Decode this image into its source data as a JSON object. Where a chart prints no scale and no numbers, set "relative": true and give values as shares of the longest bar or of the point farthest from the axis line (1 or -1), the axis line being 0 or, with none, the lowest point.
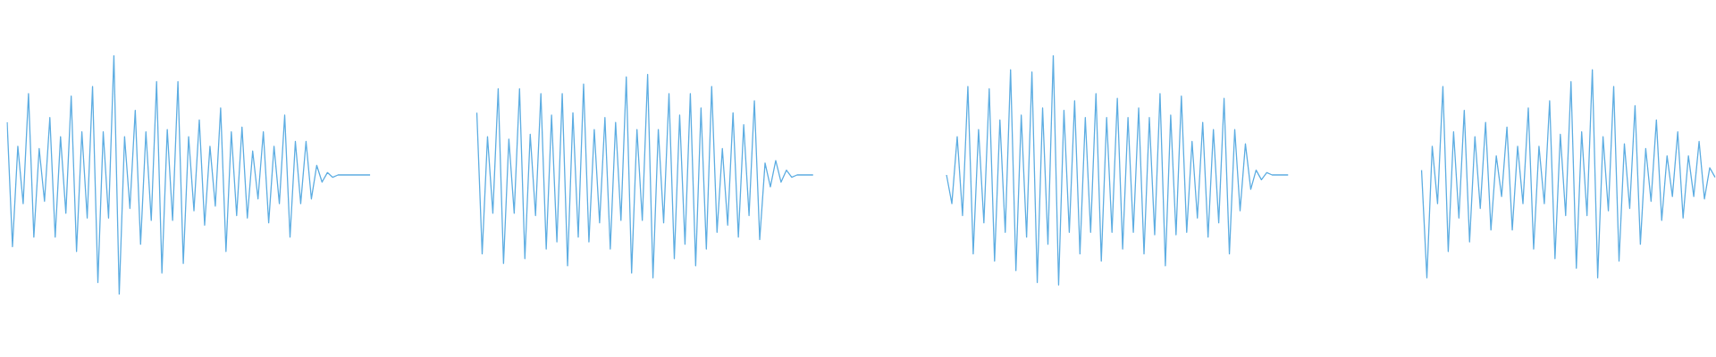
{
  "chart_data": {
    "type": "line",
    "relative": true,
    "marker": "none",
    "tick_labels": false,
    "categories": [
      null,
      null,
      null,
      null,
      null,
      null,
      null,
      null,
      null,
      null,
      null,
      null,
      null,
      null,
      null,
      null,
      null,
      null,
      null,
      null,
      null,
      null,
      null,
      null,
      null,
      null,
      null,
      null,
      null,
      null,
      null,
      null,
      null,
      null,
      null,
      null,
      null,
      null,
      null,
      null,
      null,
      null,
      null,
      null,
      null,
      null,
      null,
      null,
      null,
      null,
      null,
      null,
      null,
      null,
      null,
      null,
      null,
      null,
      null,
      null,
      null,
      null,
      null,
      null,
      null,
      null,
      null,
      null,
      null,
      null,
      null,
      null,
      null,
      null,
      null,
      null,
      null,
      null,
      null,
      null,
      null,
      null,
      null,
      null,
      null,
      null,
      null,
      null,
      null,
      null,
      null,
      null,
      null,
      null,
      null,
      null,
      null,
      null,
      null,
      null,
      null,
      null,
      null,
      null,
      null,
      null,
      null,
      null,
      null,
      null,
      null,
      null,
      null,
      null,
      null,
      null,
      null,
      null,
      null,
      null,
      null,
      null,
      null,
      null,
      null,
      null,
      null,
      null,
      null,
      null,
      null,
      null,
      null,
      null,
      null,
      null,
      null,
      null,
      null,
      null,
      null,
      null,
      null,
      null,
      null,
      null,
      null,
      null,
      null,
      null,
      null,
      null,
      null,
      null,
      null,
      null,
      null,
      null,
      null,
      null,
      null,
      null,
      null,
      null,
      null,
      null,
      null,
      null,
      null,
      null,
      null,
      null,
      null,
      null,
      null,
      null,
      null,
      null,
      null,
      null,
      null,
      null,
      null,
      null,
      null,
      null,
      null,
      null,
      null,
      null,
      null,
      null,
      null,
      null,
      null,
      null,
      null,
      null,
      null,
      null,
      null,
      null,
      null,
      null,
      null,
      null,
      null,
      null,
      null,
      null,
      null,
      null,
      null,
      null,
      null,
      null,
      null,
      null,
      null,
      null,
      null,
      null,
      null,
      null,
      null,
      null,
      null,
      null,
      null,
      null,
      null,
      null,
      null,
      null,
      null,
      null,
      null,
      null,
      null,
      null,
      null,
      null,
      null,
      null,
      null,
      null,
      null,
      null,
      null,
      null,
      null,
      null,
      null,
      null,
      null,
      null,
      null,
      null,
      null,
      null,
      null,
      null,
      null,
      null,
      null,
      null,
      null,
      null,
      null,
      null,
      null,
      null,
      null,
      null,
      null,
      null,
      null,
      null,
      null,
      null,
      null,
      null,
      null,
      null,
      null,
      null,
      null,
      null,
      null,
      null,
      null,
      null,
      null,
      null,
      null,
      null,
      null,
      null,
      null,
      null,
      null,
      null,
      null,
      null,
      null,
      null,
      null,
      null,
      null,
      null,
      null,
      null,
      null,
      null,
      null,
      null,
      null,
      null,
      null,
      null,
      null
    ],
    "series": [
      {
        "color": "#5dade2",
        "values": [
          0.72,
          0.2,
          0.62,
          0.38,
          0.84,
          0.24,
          0.61,
          0.39,
          0.74,
          0.24,
          0.66,
          0.34,
          0.83,
          0.18,
          0.68,
          0.32,
          0.87,
          0.05,
          0.68,
          0.32,
          1.0,
          0.0,
          0.66,
          0.36,
          0.77,
          0.21,
          0.68,
          0.31,
          0.89,
          0.09,
          0.69,
          0.31,
          0.89,
          0.13,
          0.66,
          0.35,
          0.73,
          0.29,
          0.62,
          0.37,
          0.78,
          0.18,
          0.68,
          0.33,
          0.7,
          0.32,
          0.6,
          0.4,
          0.68,
          0.3,
          0.62,
          0.38,
          0.75,
          0.24,
          0.64,
          0.38,
          0.64,
          0.4,
          0.54,
          0.47,
          0.51,
          0.49,
          0.5,
          0.5,
          0.5,
          0.5,
          0.5,
          0.5,
          0.5,
          null,
          null,
          null,
          null,
          null,
          null,
          null,
          null,
          null,
          null,
          null,
          null,
          null,
          null,
          null,
          null,
          null,
          null,
          null,
          null,
          null,
          null,
          null,
          null,
          null,
          null,
          null,
          null,
          null,
          null,
          null,
          null,
          null,
          null,
          null,
          null,
          null,
          null,
          null,
          null,
          null,
          null,
          null,
          null,
          null,
          null,
          null,
          null,
          null,
          null,
          null,
          null,
          null,
          null,
          null,
          null,
          null,
          null,
          null,
          null,
          null,
          null,
          null,
          null,
          null,
          null,
          null,
          null,
          null,
          null,
          null,
          null,
          null,
          null,
          null,
          null,
          null,
          null,
          null,
          null,
          null,
          null,
          null,
          null,
          null,
          null,
          null,
          null,
          null,
          null,
          null,
          null,
          null,
          null,
          null,
          null,
          null,
          null,
          null,
          null,
          null,
          null,
          null,
          null,
          null,
          null,
          null,
          null,
          null,
          null,
          null,
          null,
          null,
          null,
          null,
          null,
          null,
          null,
          null,
          null,
          null,
          null,
          null,
          null,
          null,
          null,
          null,
          null,
          null,
          null,
          null,
          null,
          null,
          null,
          null,
          null,
          null,
          null,
          null,
          null,
          null,
          null,
          null,
          null,
          null,
          null,
          null,
          null,
          null,
          null,
          null,
          null,
          null,
          null,
          null,
          null,
          null,
          null,
          null,
          null,
          null,
          null,
          null,
          null,
          null,
          null,
          null,
          null,
          null,
          null,
          null,
          null,
          null,
          null,
          null,
          null,
          null,
          null,
          null,
          null,
          null,
          null,
          null,
          null,
          null,
          null,
          null,
          null,
          null,
          null,
          null,
          null,
          null,
          null,
          null,
          null,
          null,
          null,
          null,
          null,
          null,
          null,
          null,
          null,
          null,
          null,
          null,
          null,
          null,
          null,
          null,
          null,
          null,
          null,
          null,
          null,
          null,
          null,
          null,
          null,
          null,
          null,
          null,
          null,
          null,
          null,
          null,
          null,
          null,
          null,
          null,
          null,
          null,
          null,
          null,
          null,
          null,
          null,
          null,
          null,
          null,
          null,
          null,
          null,
          null,
          null,
          null,
          null,
          null,
          null,
          null,
          null
        ]
      },
      {
        "color": "#5dade2",
        "values": [
          null,
          null,
          null,
          null,
          null,
          null,
          null,
          null,
          null,
          null,
          null,
          null,
          null,
          null,
          null,
          null,
          null,
          null,
          null,
          null,
          null,
          null,
          null,
          null,
          null,
          null,
          null,
          null,
          null,
          null,
          null,
          null,
          null,
          null,
          null,
          null,
          null,
          null,
          null,
          null,
          null,
          null,
          null,
          null,
          null,
          null,
          null,
          null,
          null,
          null,
          null,
          null,
          null,
          null,
          null,
          null,
          null,
          null,
          null,
          null,
          null,
          null,
          null,
          null,
          null,
          null,
          null,
          null,
          null,
          null,
          null,
          null,
          null,
          null,
          null,
          null,
          null,
          null,
          null,
          null,
          null,
          null,
          null,
          null,
          null,
          null,
          null,
          null,
          0.76,
          0.17,
          0.66,
          0.34,
          0.86,
          0.13,
          0.65,
          0.34,
          0.86,
          0.15,
          0.67,
          0.33,
          0.84,
          0.19,
          0.75,
          0.22,
          0.84,
          0.12,
          0.76,
          0.24,
          0.88,
          0.22,
          0.69,
          0.3,
          0.74,
          0.19,
          0.72,
          0.31,
          0.91,
          0.09,
          0.69,
          0.31,
          0.92,
          0.07,
          0.69,
          0.3,
          0.84,
          0.15,
          0.75,
          0.21,
          0.84,
          0.12,
          0.78,
          0.19,
          0.87,
          0.26,
          0.61,
          0.29,
          0.76,
          0.24,
          0.71,
          0.33,
          0.81,
          0.23,
          0.55,
          0.45,
          0.56,
          0.47,
          0.52,
          0.49,
          0.5,
          0.5,
          0.5,
          0.5,
          null,
          null,
          null,
          null,
          null,
          null,
          null,
          null,
          null,
          null,
          null,
          null,
          null,
          null,
          null,
          null,
          null,
          null,
          null,
          null,
          null,
          null,
          null,
          null,
          null,
          null,
          null,
          null,
          null,
          null,
          null,
          null,
          null,
          null,
          null,
          null,
          null,
          null,
          null,
          null,
          null,
          null,
          null,
          null,
          null,
          null,
          null,
          null,
          null,
          null,
          null,
          null,
          null,
          null,
          null,
          null,
          null,
          null,
          null,
          null,
          null,
          null,
          null,
          null,
          null,
          null,
          null,
          null,
          null,
          null,
          null,
          null,
          null,
          null,
          null,
          null,
          null,
          null,
          null,
          null,
          null,
          null,
          null,
          null,
          null,
          null,
          null,
          null,
          null,
          null,
          null,
          null,
          null,
          null,
          null,
          null,
          null,
          null,
          null,
          null,
          null,
          null,
          null,
          null,
          null,
          null,
          null,
          null,
          null,
          null,
          null,
          null,
          null,
          null,
          null,
          null,
          null,
          null,
          null,
          null,
          null,
          null,
          null,
          null,
          null,
          null,
          null,
          null,
          null,
          null,
          null,
          null,
          null,
          null,
          null,
          null,
          null,
          null,
          null,
          null,
          null,
          null,
          null,
          null,
          null,
          null,
          null,
          null,
          null,
          null,
          null,
          null,
          null,
          null,
          null,
          null,
          null,
          null,
          null,
          null,
          null,
          null,
          null,
          null,
          null,
          null,
          null,
          null,
          null
        ]
      },
      {
        "color": "#5dade2",
        "values": [
          null,
          null,
          null,
          null,
          null,
          null,
          null,
          null,
          null,
          null,
          null,
          null,
          null,
          null,
          null,
          null,
          null,
          null,
          null,
          null,
          null,
          null,
          null,
          null,
          null,
          null,
          null,
          null,
          null,
          null,
          null,
          null,
          null,
          null,
          null,
          null,
          null,
          null,
          null,
          null,
          null,
          null,
          null,
          null,
          null,
          null,
          null,
          null,
          null,
          null,
          null,
          null,
          null,
          null,
          null,
          null,
          null,
          null,
          null,
          null,
          null,
          null,
          null,
          null,
          null,
          null,
          null,
          null,
          null,
          null,
          null,
          null,
          null,
          null,
          null,
          null,
          null,
          null,
          null,
          null,
          null,
          null,
          null,
          null,
          null,
          null,
          null,
          null,
          null,
          null,
          null,
          null,
          null,
          null,
          null,
          null,
          null,
          null,
          null,
          null,
          null,
          null,
          null,
          null,
          null,
          null,
          null,
          null,
          null,
          null,
          null,
          null,
          null,
          null,
          null,
          null,
          null,
          null,
          null,
          null,
          null,
          null,
          null,
          null,
          null,
          null,
          null,
          null,
          null,
          null,
          null,
          null,
          null,
          null,
          null,
          null,
          null,
          null,
          null,
          null,
          null,
          null,
          null,
          null,
          null,
          null,
          null,
          null,
          null,
          null,
          null,
          null,
          null,
          null,
          null,
          null,
          null,
          null,
          null,
          null,
          null,
          null,
          null,
          null,
          null,
          null,
          null,
          null,
          null,
          null,
          null,
          null,
          null,
          null,
          null,
          null,
          0.5,
          0.38,
          0.66,
          0.33,
          0.87,
          0.17,
          0.69,
          0.3,
          0.86,
          0.14,
          0.73,
          0.26,
          0.94,
          0.1,
          0.75,
          0.24,
          0.93,
          0.05,
          0.78,
          0.21,
          1.0,
          0.04,
          0.77,
          0.26,
          0.81,
          0.17,
          0.74,
          0.26,
          0.84,
          0.14,
          0.74,
          0.26,
          0.82,
          0.19,
          0.74,
          0.26,
          0.78,
          0.17,
          0.74,
          0.25,
          0.84,
          0.12,
          0.75,
          0.25,
          0.83,
          0.26,
          0.64,
          0.32,
          0.72,
          0.24,
          0.69,
          0.3,
          0.82,
          0.17,
          0.69,
          0.35,
          0.63,
          0.44,
          0.52,
          0.48,
          0.51,
          0.5,
          0.5,
          0.5,
          0.5,
          null,
          null,
          null,
          null,
          null,
          null,
          null,
          null,
          null,
          null,
          null,
          null,
          null,
          null,
          null,
          null,
          null,
          null,
          null,
          null,
          null,
          null,
          null,
          null,
          null,
          null,
          null,
          null,
          null,
          null,
          null,
          null,
          null,
          null,
          null,
          null,
          null,
          null,
          null,
          null,
          null,
          null,
          null,
          null,
          null,
          null,
          null,
          null,
          null,
          null,
          null,
          null,
          null,
          null,
          null,
          null,
          null,
          null,
          null,
          null,
          null,
          null,
          null,
          null,
          null,
          null,
          null,
          null,
          null,
          null,
          null,
          null,
          null,
          null,
          null,
          null,
          null,
          null,
          null,
          null
        ]
      },
      {
        "color": "#5dade2",
        "values": [
          null,
          null,
          null,
          null,
          null,
          null,
          null,
          null,
          null,
          null,
          null,
          null,
          null,
          null,
          null,
          null,
          null,
          null,
          null,
          null,
          null,
          null,
          null,
          null,
          null,
          null,
          null,
          null,
          null,
          null,
          null,
          null,
          null,
          null,
          null,
          null,
          null,
          null,
          null,
          null,
          null,
          null,
          null,
          null,
          null,
          null,
          null,
          null,
          null,
          null,
          null,
          null,
          null,
          null,
          null,
          null,
          null,
          null,
          null,
          null,
          null,
          null,
          null,
          null,
          null,
          null,
          null,
          null,
          null,
          null,
          null,
          null,
          null,
          null,
          null,
          null,
          null,
          null,
          null,
          null,
          null,
          null,
          null,
          null,
          null,
          null,
          null,
          null,
          null,
          null,
          null,
          null,
          null,
          null,
          null,
          null,
          null,
          null,
          null,
          null,
          null,
          null,
          null,
          null,
          null,
          null,
          null,
          null,
          null,
          null,
          null,
          null,
          null,
          null,
          null,
          null,
          null,
          null,
          null,
          null,
          null,
          null,
          null,
          null,
          null,
          null,
          null,
          null,
          null,
          null,
          null,
          null,
          null,
          null,
          null,
          null,
          null,
          null,
          null,
          null,
          null,
          null,
          null,
          null,
          null,
          null,
          null,
          null,
          null,
          null,
          null,
          null,
          null,
          null,
          null,
          null,
          null,
          null,
          null,
          null,
          null,
          null,
          null,
          null,
          null,
          null,
          null,
          null,
          null,
          null,
          null,
          null,
          null,
          null,
          null,
          null,
          null,
          null,
          null,
          null,
          null,
          null,
          null,
          null,
          null,
          null,
          null,
          null,
          null,
          null,
          null,
          null,
          null,
          null,
          null,
          null,
          null,
          null,
          null,
          null,
          null,
          null,
          null,
          null,
          null,
          null,
          null,
          null,
          null,
          null,
          null,
          null,
          null,
          null,
          null,
          null,
          null,
          null,
          null,
          null,
          null,
          null,
          null,
          null,
          null,
          null,
          null,
          null,
          null,
          null,
          null,
          null,
          null,
          null,
          null,
          null,
          null,
          null,
          null,
          null,
          null,
          null,
          null,
          null,
          null,
          null,
          null,
          null,
          null,
          null,
          null,
          null,
          null,
          null,
          null,
          null,
          null,
          null,
          null,
          null,
          null,
          null,
          null,
          null,
          null,
          0.52,
          0.07,
          0.62,
          0.38,
          0.87,
          0.18,
          0.68,
          0.32,
          0.77,
          0.22,
          0.66,
          0.36,
          0.72,
          0.27,
          0.58,
          0.41,
          0.7,
          0.27,
          0.62,
          0.38,
          0.78,
          0.19,
          0.62,
          0.38,
          0.81,
          0.15,
          0.67,
          0.33,
          0.89,
          0.11,
          0.68,
          0.33,
          0.94,
          0.07,
          0.66,
          0.35,
          0.87,
          0.14,
          0.63,
          0.36,
          0.79,
          0.21,
          0.61,
          0.39,
          0.73,
          0.31,
          0.58,
          0.41,
          0.68,
          0.32,
          0.58,
          0.41,
          0.64,
          0.4,
          0.53,
          0.49
        ]
      }
    ]
  }
}
